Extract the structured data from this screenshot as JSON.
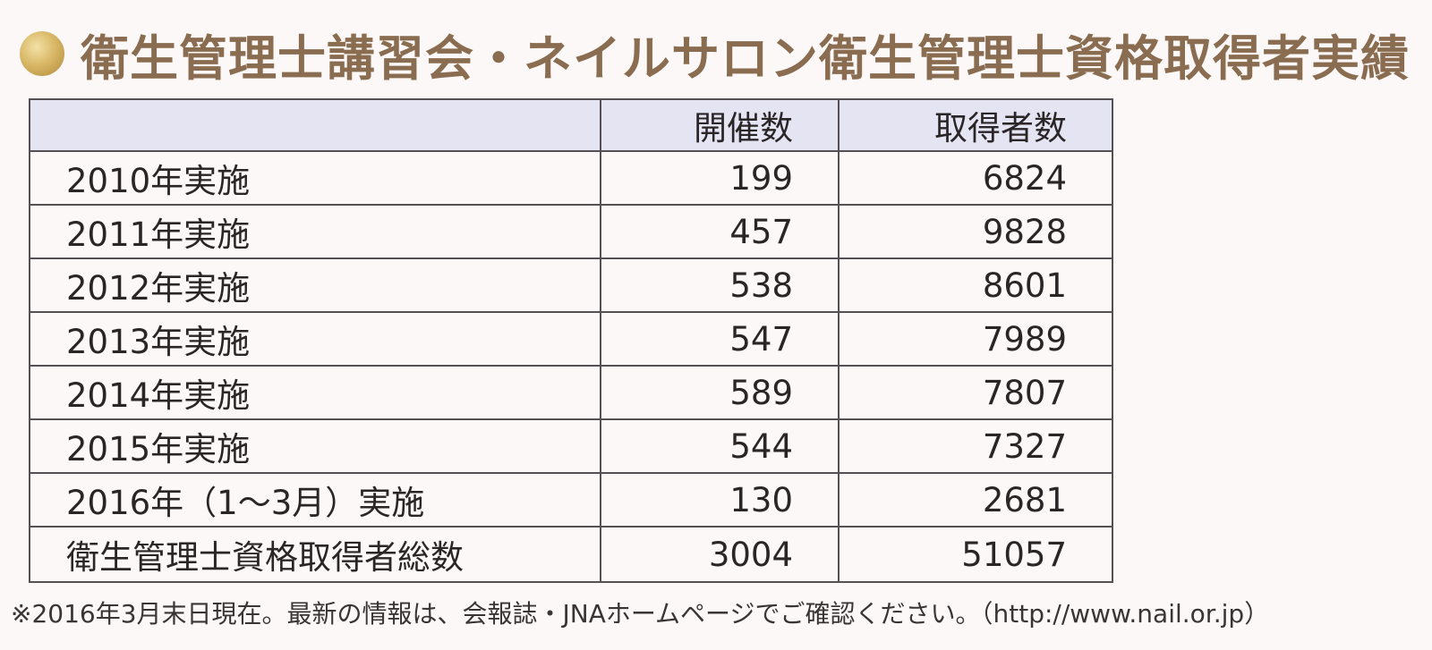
{
  "title": "衛生管理士講習会・ネイルサロン衛生管理士資格取得者実績",
  "table": {
    "header": {
      "label": "",
      "col1": "開催数",
      "col2": "取得者数"
    },
    "rows": [
      {
        "label": "2010年実施",
        "sessions": "199",
        "holders": "6824"
      },
      {
        "label": "2011年実施",
        "sessions": "457",
        "holders": "9828"
      },
      {
        "label": "2012年実施",
        "sessions": "538",
        "holders": "8601"
      },
      {
        "label": "2013年実施",
        "sessions": "547",
        "holders": "7989"
      },
      {
        "label": "2014年実施",
        "sessions": "589",
        "holders": "7807"
      },
      {
        "label": "2015年実施",
        "sessions": "544",
        "holders": "7327"
      },
      {
        "label": "2016年（1～3月）実施",
        "sessions": "130",
        "holders": "2681"
      }
    ],
    "total": {
      "label": "衛生管理士資格取得者総数",
      "sessions": "3004",
      "holders": "51057"
    }
  },
  "note": "※2016年3月末日現在。最新の情報は、会報誌・JNAホームページでご確認ください。（http://www.nail.or.jp）",
  "colors": {
    "title": "#8a6d51",
    "header_bg": "#e4e4f3",
    "border": "#545054",
    "dot": "#d9b867"
  },
  "icons": {
    "title_marker": "gold-circle-icon"
  }
}
